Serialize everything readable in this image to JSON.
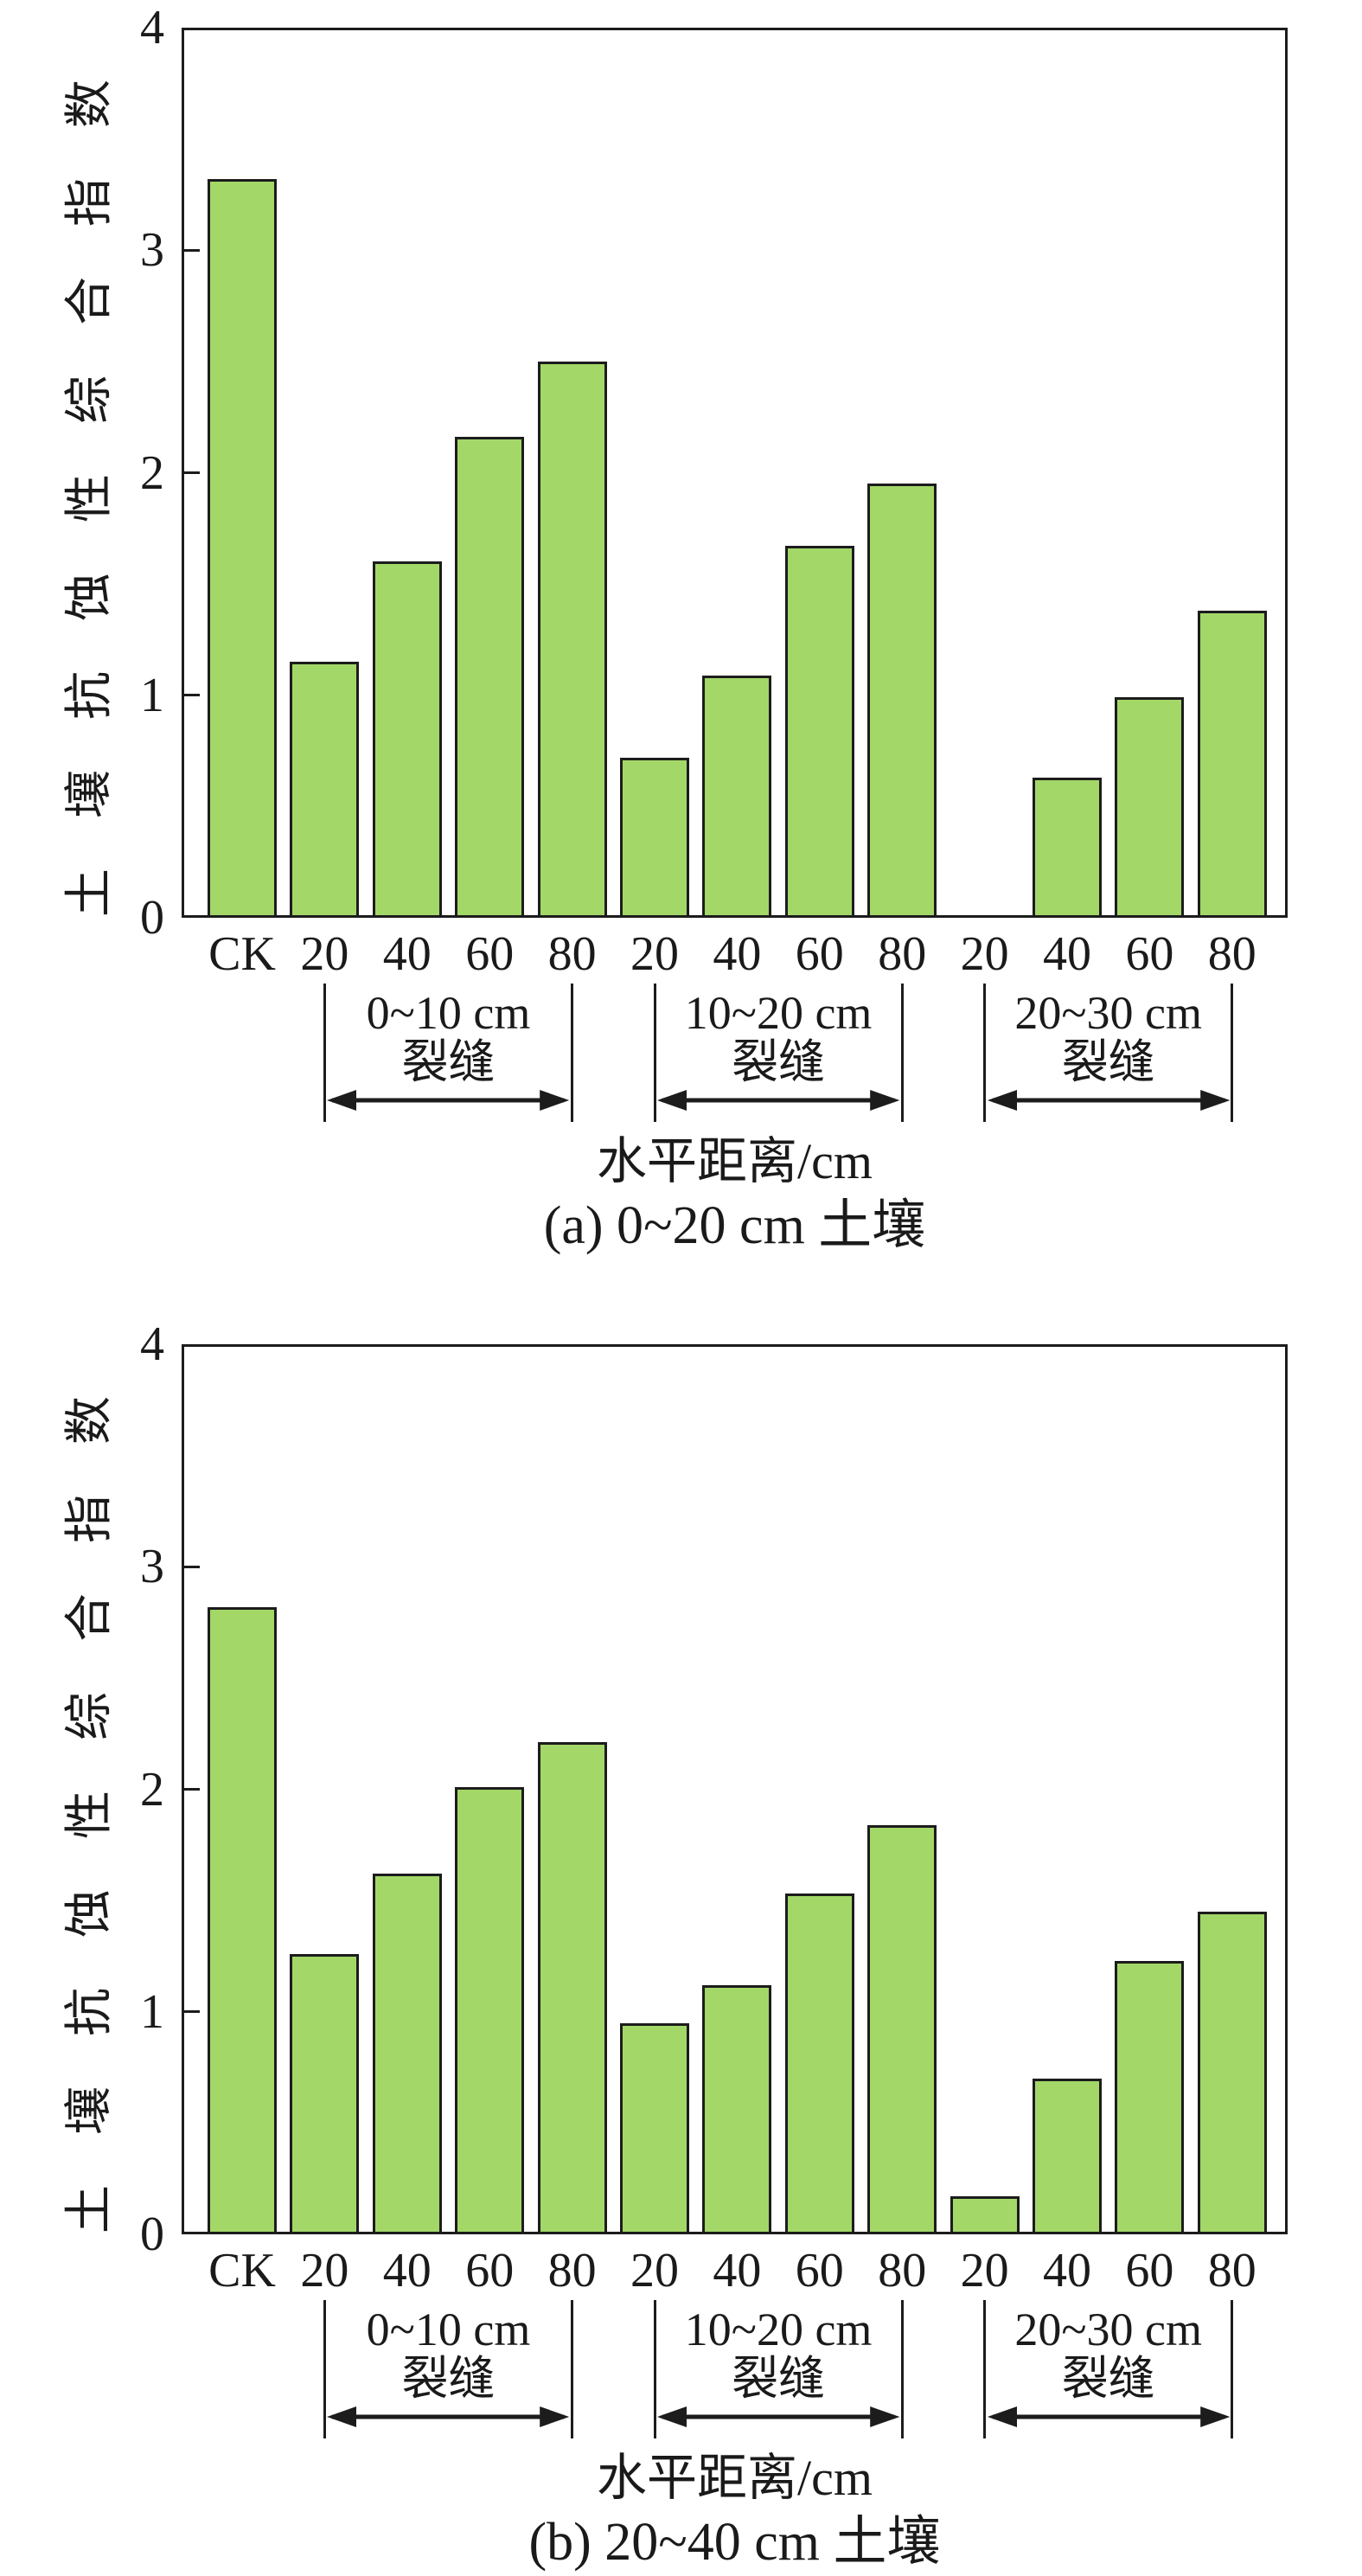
{
  "figure": {
    "background": "#FFFFFF",
    "text_color": "#1A1A1A",
    "bar_fill": "#A3D768",
    "bar_stroke": "#1C1C1C"
  },
  "chart_data": [
    {
      "id": "a",
      "type": "bar",
      "title": "(a) 0~20 cm 土壤",
      "xlabel": "水平距离/cm",
      "ylabel": "土壤抗蚀性综合指数",
      "ylim": [
        0,
        4
      ],
      "yticks": [
        0,
        1,
        2,
        3,
        4
      ],
      "grid": false,
      "legend": null,
      "categories": [
        "CK",
        "20",
        "40",
        "60",
        "80",
        "20",
        "40",
        "60",
        "80",
        "20",
        "40",
        "60",
        "80"
      ],
      "values": [
        3.32,
        1.15,
        1.6,
        2.16,
        2.5,
        0.72,
        1.09,
        1.67,
        1.95,
        0,
        0.63,
        0.99,
        1.38
      ],
      "groups": [
        {
          "line1": "0~10 cm",
          "line2": "裂缝",
          "from": 1,
          "to": 4
        },
        {
          "line1": "10~20 cm",
          "line2": "裂缝",
          "from": 5,
          "to": 8
        },
        {
          "line1": "20~30 cm",
          "line2": "裂缝",
          "from": 9,
          "to": 12
        }
      ]
    },
    {
      "id": "b",
      "type": "bar",
      "title": "(b) 20~40 cm 土壤",
      "xlabel": "水平距离/cm",
      "ylabel": "土壤抗蚀性综合指数",
      "ylim": [
        0,
        4
      ],
      "yticks": [
        0,
        1,
        2,
        3,
        4
      ],
      "grid": false,
      "legend": null,
      "categories": [
        "CK",
        "20",
        "40",
        "60",
        "80",
        "20",
        "40",
        "60",
        "80",
        "20",
        "40",
        "60",
        "80"
      ],
      "values": [
        2.82,
        1.26,
        1.62,
        2.01,
        2.21,
        0.95,
        1.12,
        1.53,
        1.84,
        0.17,
        0.7,
        1.23,
        1.45
      ],
      "groups": [
        {
          "line1": "0~10 cm",
          "line2": "裂缝",
          "from": 1,
          "to": 4
        },
        {
          "line1": "10~20 cm",
          "line2": "裂缝",
          "from": 5,
          "to": 8
        },
        {
          "line1": "20~30 cm",
          "line2": "裂缝",
          "from": 9,
          "to": 12
        }
      ]
    }
  ]
}
